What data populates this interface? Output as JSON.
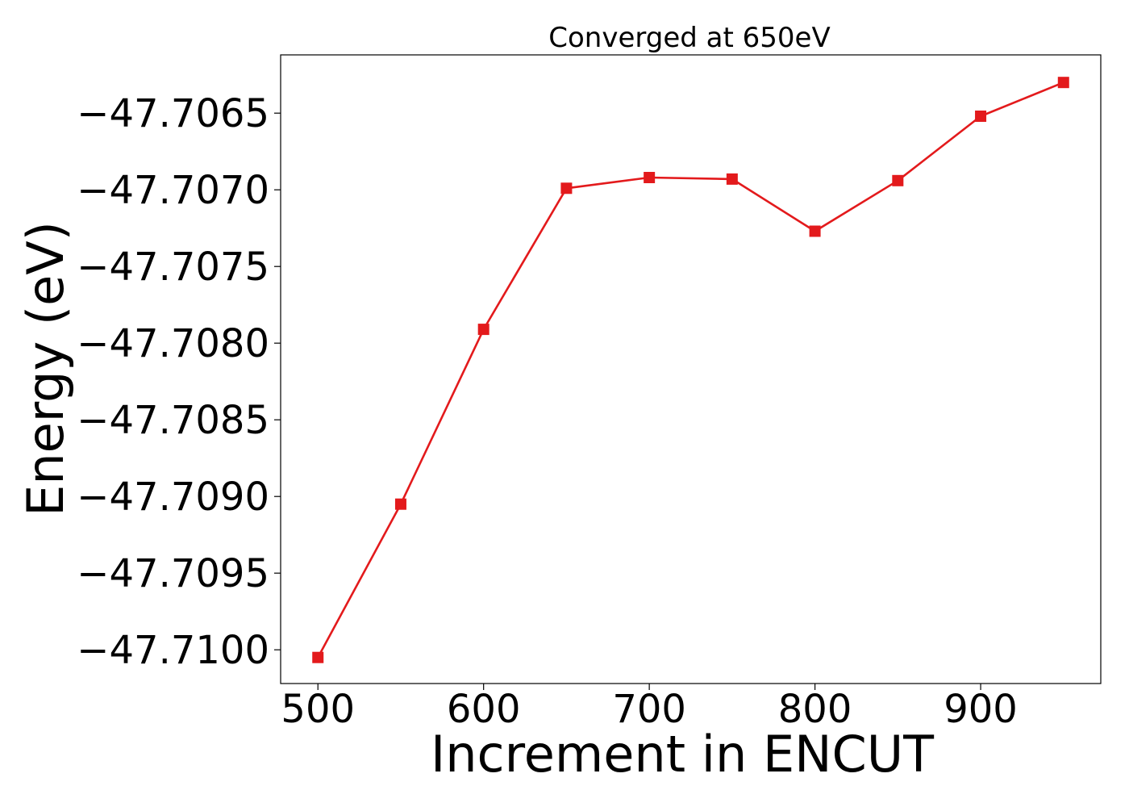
{
  "chart_data": {
    "type": "line",
    "title": "Converged at 650eV",
    "xlabel": "Increment in ENCUT",
    "ylabel": "Energy (eV)",
    "xlim": [
      477.5,
      972.5
    ],
    "ylim": [
      -47.71022,
      -47.70612
    ],
    "xticks": [
      500,
      600,
      700,
      800,
      900
    ],
    "xtick_labels": [
      "500",
      "600",
      "700",
      "800",
      "900"
    ],
    "yticks": [
      -47.7065,
      -47.707,
      -47.7075,
      -47.708,
      -47.7085,
      -47.709,
      -47.7095,
      -47.71
    ],
    "ytick_labels": [
      "−47.7065",
      "−47.7070",
      "−47.7075",
      "−47.7080",
      "−47.7085",
      "−47.7090",
      "−47.7095",
      "−47.7100"
    ],
    "grid": false,
    "series": [
      {
        "color": "#e31a1c",
        "marker": "square",
        "x": [
          500,
          550,
          600,
          650,
          700,
          750,
          800,
          850,
          900,
          950
        ],
        "y": [
          -47.71005,
          -47.70905,
          -47.70791,
          -47.70699,
          -47.70692,
          -47.70693,
          -47.70727,
          -47.70694,
          -47.70652,
          -47.7063
        ]
      }
    ]
  }
}
